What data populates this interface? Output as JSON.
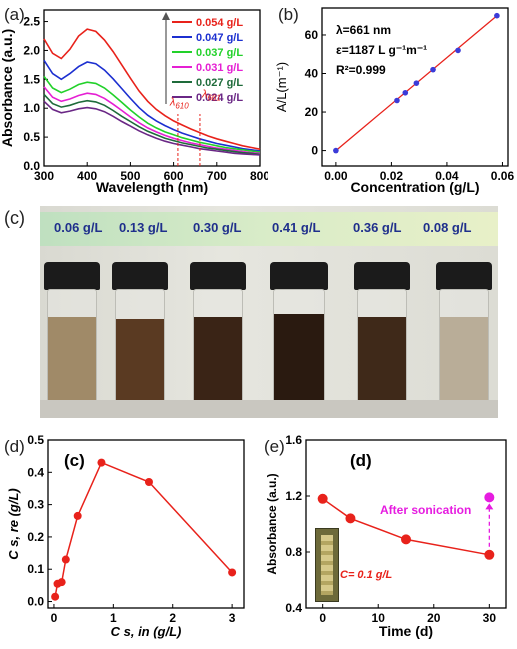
{
  "chart_data": [
    {
      "panel": "(a)",
      "type": "line",
      "xlabel": "Wavelength (nm)",
      "ylabel": "Absorbance (a.u.)",
      "xlim": [
        300,
        800
      ],
      "ylim": [
        0,
        2.7
      ],
      "xticks": [
        "300",
        "400",
        "500",
        "600",
        "700",
        "800"
      ],
      "yticks": [
        "0.0",
        "0.5",
        "1.0",
        "1.5",
        "2.0",
        "2.5"
      ],
      "x": [
        300,
        320,
        340,
        360,
        380,
        400,
        420,
        440,
        460,
        480,
        500,
        520,
        540,
        560,
        580,
        600,
        620,
        640,
        660,
        680,
        700,
        720,
        740,
        760,
        780,
        800
      ],
      "series": [
        {
          "name": "0.054 g/L",
          "color": "#e8221b",
          "values": [
            2.2,
            1.95,
            1.86,
            2.02,
            2.25,
            2.37,
            2.33,
            2.18,
            1.98,
            1.75,
            1.52,
            1.3,
            1.12,
            0.98,
            0.87,
            0.78,
            0.71,
            0.64,
            0.58,
            0.52,
            0.47,
            0.43,
            0.39,
            0.35,
            0.32,
            0.29
          ]
        },
        {
          "name": "0.047 g/L",
          "color": "#1c2fd0",
          "values": [
            1.83,
            1.6,
            1.5,
            1.6,
            1.72,
            1.8,
            1.77,
            1.66,
            1.51,
            1.34,
            1.17,
            1.01,
            0.88,
            0.78,
            0.7,
            0.63,
            0.57,
            0.52,
            0.47,
            0.43,
            0.39,
            0.36,
            0.33,
            0.3,
            0.28,
            0.26
          ]
        },
        {
          "name": "0.037 g/L",
          "color": "#22d12a",
          "values": [
            1.55,
            1.35,
            1.27,
            1.33,
            1.41,
            1.45,
            1.43,
            1.35,
            1.23,
            1.1,
            0.97,
            0.85,
            0.74,
            0.66,
            0.59,
            0.54,
            0.49,
            0.45,
            0.41,
            0.38,
            0.35,
            0.32,
            0.3,
            0.28,
            0.26,
            0.24
          ]
        },
        {
          "name": "0.031 g/L",
          "color": "#e51fd3",
          "values": [
            1.37,
            1.19,
            1.12,
            1.16,
            1.22,
            1.26,
            1.24,
            1.17,
            1.07,
            0.96,
            0.85,
            0.75,
            0.66,
            0.59,
            0.53,
            0.48,
            0.44,
            0.4,
            0.37,
            0.34,
            0.31,
            0.29,
            0.27,
            0.25,
            0.23,
            0.22
          ]
        },
        {
          "name": "0.027 g/L",
          "color": "#1e6b3a",
          "values": [
            1.24,
            1.08,
            1.02,
            1.05,
            1.1,
            1.13,
            1.11,
            1.05,
            0.96,
            0.86,
            0.77,
            0.68,
            0.6,
            0.54,
            0.48,
            0.44,
            0.4,
            0.37,
            0.34,
            0.31,
            0.29,
            0.27,
            0.25,
            0.23,
            0.22,
            0.2
          ]
        },
        {
          "name": "0.024 g/L",
          "color": "#6a2785",
          "values": [
            1.12,
            0.98,
            0.92,
            0.95,
            0.99,
            1.01,
            0.99,
            0.94,
            0.86,
            0.77,
            0.69,
            0.61,
            0.54,
            0.48,
            0.43,
            0.39,
            0.36,
            0.33,
            0.3,
            0.28,
            0.26,
            0.24,
            0.22,
            0.21,
            0.2,
            0.19
          ]
        }
      ],
      "annotations": [
        "λ610",
        "λ661"
      ]
    },
    {
      "panel": "(b)",
      "type": "scatter",
      "xlabel": "Concentration (g/L)",
      "ylabel": "A/L(m⁻¹)",
      "xlim": [
        -0.005,
        0.062
      ],
      "ylim": [
        -8,
        74
      ],
      "xticks": [
        "0.00",
        "0.02",
        "0.04",
        "0.06"
      ],
      "yticks": [
        "0",
        "20",
        "40",
        "60"
      ],
      "x": [
        0,
        0.022,
        0.025,
        0.029,
        0.035,
        0.044,
        0.058
      ],
      "values": [
        0,
        26,
        30,
        35,
        42,
        52,
        70
      ],
      "fit": {
        "x": [
          0,
          0.058
        ],
        "y": [
          0,
          70
        ]
      },
      "text": [
        "λ=661 nm",
        "ε=1187 L g⁻¹m⁻¹",
        "R²=0.999"
      ]
    },
    {
      "panel": "(d)",
      "type": "line",
      "title": "(c)",
      "xlabel": "C s, in (g/L)",
      "ylabel": "C s, re (g/L)",
      "xlim": [
        -0.1,
        3.2
      ],
      "ylim": [
        -0.02,
        0.5
      ],
      "xticks": [
        "0",
        "1",
        "2",
        "3"
      ],
      "yticks": [
        "0.0",
        "0.1",
        "0.2",
        "0.3",
        "0.4",
        "0.5"
      ],
      "x": [
        0.02,
        0.06,
        0.13,
        0.2,
        0.4,
        0.8,
        1.6,
        3.0
      ],
      "values": [
        0.015,
        0.055,
        0.06,
        0.13,
        0.265,
        0.43,
        0.37,
        0.09
      ]
    },
    {
      "panel": "(e)",
      "type": "line",
      "title": "(d)",
      "xlabel": "Time (d)",
      "ylabel": "Absorbance (a.u.)",
      "xlim": [
        -3,
        33
      ],
      "ylim": [
        0.4,
        1.6
      ],
      "xticks": [
        "0",
        "10",
        "20",
        "30"
      ],
      "yticks": [
        "0.4",
        "0.8",
        "1.2",
        "1.6"
      ],
      "x": [
        0,
        5,
        15,
        30
      ],
      "values": [
        1.18,
        1.04,
        0.89,
        0.78
      ],
      "after_sonication": {
        "label": "After sonication",
        "x": 30,
        "y": 1.19,
        "color": "#e61ce0"
      },
      "inset_text": "C= 0.1 g/L"
    }
  ],
  "photo": {
    "label": "(c)",
    "concentrations": [
      "0.06 g/L",
      "0.13 g/L",
      "0.30 g/L",
      "0.41 g/L",
      "0.36 g/L",
      "0.08 g/L"
    ]
  },
  "labels": {
    "a": "(a)",
    "b": "(b)",
    "d": "(d)",
    "e": "(e)"
  }
}
